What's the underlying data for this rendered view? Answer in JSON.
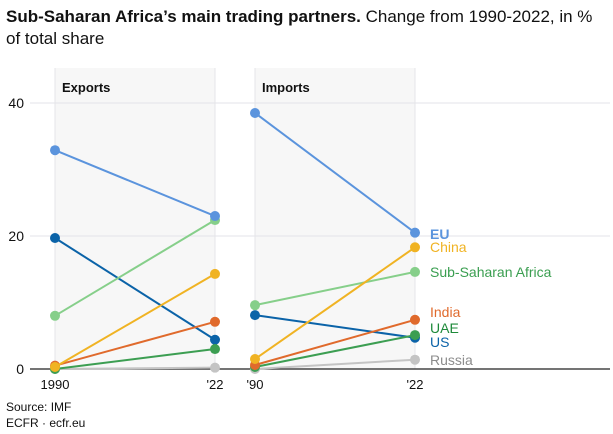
{
  "title_bold": "Sub-Saharan Africa’s main trading partners.",
  "title_rest": " Change from 1990-2022, in % of total share",
  "source": "Source: IMF",
  "credit": "ECFR · ecfr.eu",
  "chart_data": {
    "type": "line",
    "title": "Sub-Saharan Africa’s main trading partners. Change from 1990-2022, in % of total share",
    "ylim": [
      0,
      40
    ],
    "yticks": [
      0,
      20,
      40
    ],
    "grid": true,
    "panels": [
      {
        "name": "Exports",
        "x_labels": [
          "1990",
          "'22"
        ]
      },
      {
        "name": "Imports",
        "x_labels": [
          "'90",
          "'22"
        ]
      }
    ],
    "series": [
      {
        "name": "EU",
        "color": "#5b94dd",
        "exports": [
          32.9,
          23.0
        ],
        "imports": [
          38.5,
          20.5
        ]
      },
      {
        "name": "China",
        "color": "#f0b323",
        "exports": [
          0.3,
          14.3
        ],
        "imports": [
          1.5,
          18.3
        ]
      },
      {
        "name": "Sub-Saharan Africa",
        "color": "#86cf8a",
        "label_color": "#3a9e50",
        "exports": [
          8.0,
          22.4
        ],
        "imports": [
          9.6,
          14.6
        ]
      },
      {
        "name": "India",
        "color": "#e06a2c",
        "exports": [
          0.5,
          7.1
        ],
        "imports": [
          0.6,
          7.4
        ]
      },
      {
        "name": "UAE",
        "color": "#3c9e52",
        "label_color": "#1e8a3a",
        "exports": [
          0.0,
          3.0
        ],
        "imports": [
          0.3,
          5.1
        ]
      },
      {
        "name": "US",
        "color": "#0b63a8",
        "exports": [
          19.7,
          4.4
        ],
        "imports": [
          8.1,
          4.7
        ]
      },
      {
        "name": "Russia",
        "color": "#c4c4c4",
        "label_color": "#8c8c8c",
        "exports": [
          0.0,
          0.2
        ],
        "imports": [
          0.0,
          1.4
        ]
      }
    ]
  }
}
